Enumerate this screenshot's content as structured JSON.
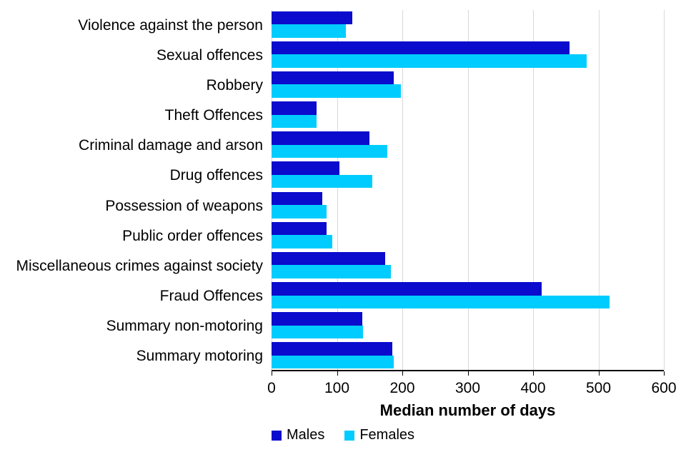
{
  "chart_data": {
    "type": "bar",
    "orientation": "horizontal",
    "title": "",
    "xlabel": "Median number of days",
    "ylabel": "",
    "xlim": [
      0,
      600
    ],
    "xticks": [
      0,
      100,
      200,
      300,
      400,
      500,
      600
    ],
    "grid": "vertical",
    "legend_position": "bottom",
    "categories": [
      "Violence against the person",
      "Sexual offences",
      "Robbery",
      "Theft Offences",
      "Criminal damage and arson",
      "Drug offences",
      "Possession of weapons",
      "Public order offences",
      "Miscellaneous crimes against society",
      "Fraud Offences",
      "Summary non-motoring",
      "Summary motoring"
    ],
    "series": [
      {
        "name": "Males",
        "color": "#0b0bcd",
        "values": [
          124,
          456,
          187,
          69,
          150,
          104,
          78,
          84,
          174,
          413,
          139,
          185
        ]
      },
      {
        "name": "Females",
        "color": "#00ccff",
        "values": [
          114,
          482,
          198,
          69,
          177,
          154,
          84,
          93,
          182,
          517,
          140,
          187
        ]
      }
    ]
  },
  "colors": {
    "gridline": "#d9d9d9",
    "axis": "#000000",
    "background": "#ffffff",
    "text": "#000000"
  }
}
